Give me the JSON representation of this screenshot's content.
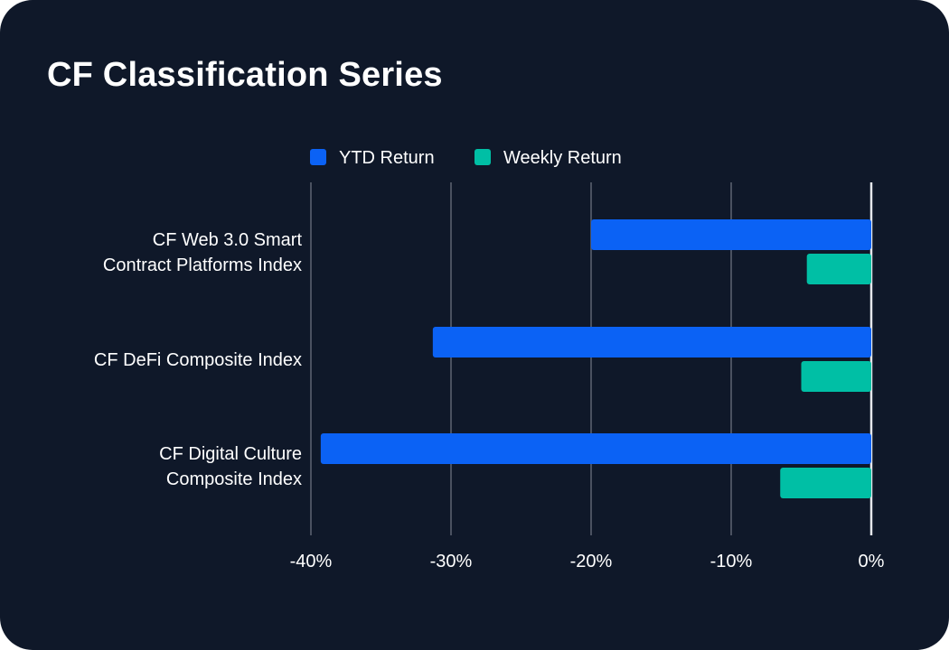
{
  "card": {
    "background": "#0f1829"
  },
  "chart_data": {
    "type": "bar",
    "orientation": "horizontal",
    "title": "CF Classification Series",
    "categories": [
      [
        "CF Web 3.0 Smart",
        "Contract Platforms Index"
      ],
      [
        "CF DeFi Composite Index"
      ],
      [
        "CF Digital Culture",
        "Composite Index"
      ]
    ],
    "series": [
      {
        "name": "YTD Return",
        "color": "#0b62f5",
        "values": [
          -20.0,
          -31.3,
          -39.3
        ]
      },
      {
        "name": "Weekly Return",
        "color": "#00bfa5",
        "values": [
          -4.6,
          -5.0,
          -6.5
        ]
      }
    ],
    "xlim": [
      -40,
      0
    ],
    "xticks": [
      -40,
      -30,
      -20,
      -10,
      0
    ],
    "tick_labels": [
      "-40%",
      "-30%",
      "-20%",
      "-10%",
      "0%"
    ],
    "legend_position": "top-center",
    "grid": true
  }
}
